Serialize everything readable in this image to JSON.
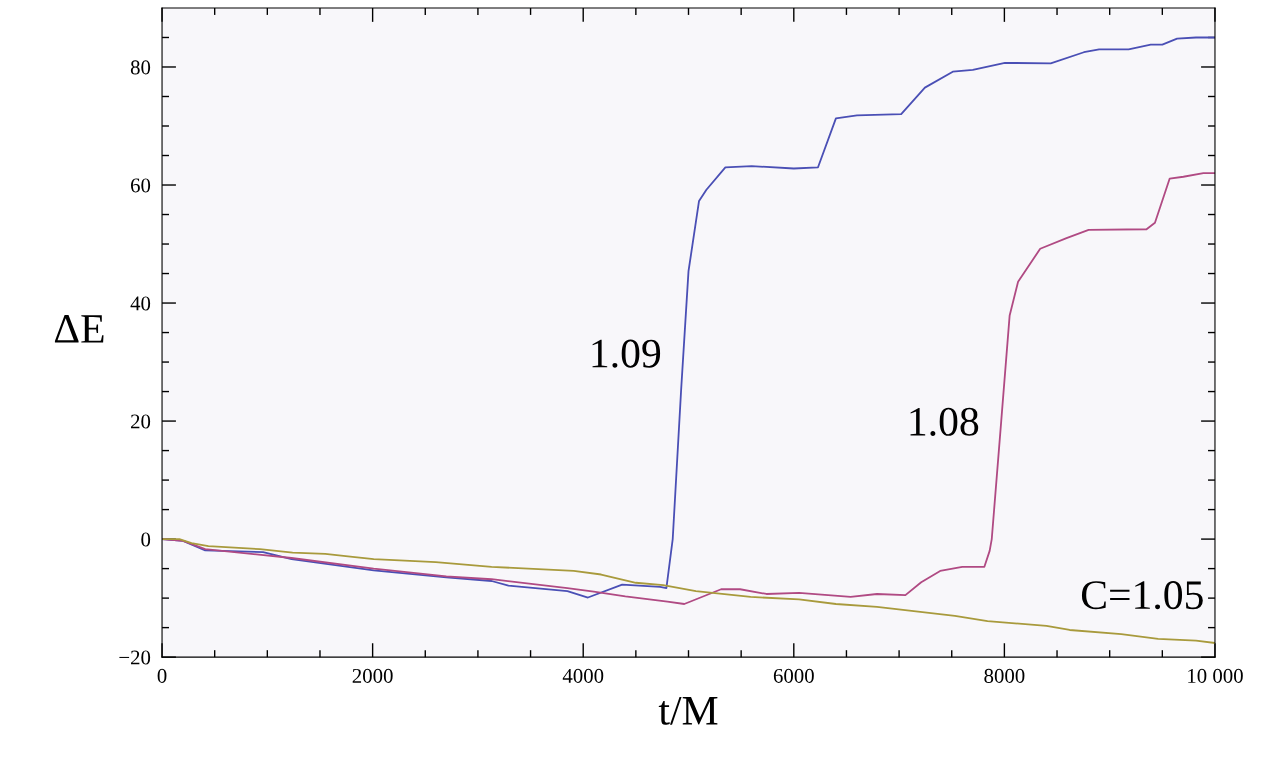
{
  "chart_data": {
    "type": "line",
    "xlabel": "t/M",
    "ylabel": "ΔE",
    "xlim": [
      0,
      10000
    ],
    "ylim": [
      -20,
      90
    ],
    "xticks": [
      0,
      {
        "value": 500,
        "label": null
      },
      {
        "value": 1000,
        "label": null
      },
      {
        "value": 1500,
        "label": null
      },
      2000,
      {
        "value": 2500,
        "label": null
      },
      {
        "value": 3000,
        "label": null
      },
      {
        "value": 3500,
        "label": null
      },
      4000,
      {
        "value": 4500,
        "label": null
      },
      {
        "value": 5000,
        "label": null
      },
      {
        "value": 5500,
        "label": null
      },
      6000,
      {
        "value": 6500,
        "label": null
      },
      {
        "value": 7000,
        "label": null
      },
      {
        "value": 7500,
        "label": null
      },
      8000,
      {
        "value": 8500,
        "label": null
      },
      {
        "value": 9000,
        "label": null
      },
      {
        "value": 9500,
        "label": null
      },
      {
        "value": 10000,
        "label": "10 000"
      }
    ],
    "yticks": [
      {
        "value": -20,
        "label": "−20"
      },
      {
        "value": -15,
        "label": null
      },
      {
        "value": -10,
        "label": null
      },
      {
        "value": -5,
        "label": null
      },
      0,
      {
        "value": 5,
        "label": null
      },
      {
        "value": 10,
        "label": null
      },
      {
        "value": 15,
        "label": null
      },
      20,
      {
        "value": 25,
        "label": null
      },
      {
        "value": 30,
        "label": null
      },
      {
        "value": 35,
        "label": null
      },
      40,
      {
        "value": 45,
        "label": null
      },
      {
        "value": 50,
        "label": null
      },
      {
        "value": 55,
        "label": null
      },
      60,
      {
        "value": 65,
        "label": null
      },
      {
        "value": 70,
        "label": null
      },
      {
        "value": 75,
        "label": null
      },
      80,
      {
        "value": 85,
        "label": null
      }
    ],
    "grid": false,
    "legend": false,
    "marker": "none",
    "line_style": "solid",
    "series": [
      {
        "name": "1.09",
        "color": "#4a4fb5",
        "x": [
          0,
          200,
          410,
          960,
          1230,
          2010,
          2700,
          3130,
          3290,
          3850,
          4045,
          4370,
          4730,
          4790,
          4850,
          4930,
          5000,
          5100,
          5170,
          5350,
          5600,
          6000,
          6230,
          6400,
          6600,
          7020,
          7245,
          7510,
          7700,
          8005,
          8440,
          8755,
          8900,
          9180,
          9390,
          9500,
          9640,
          9820,
          10000
        ],
        "values": [
          0,
          -0.3,
          -1.9,
          -2.2,
          -3.4,
          -5.3,
          -6.5,
          -7.1,
          -7.9,
          -8.8,
          -9.9,
          -7.7,
          -8.1,
          -8.3,
          0,
          25.3,
          45.4,
          57.3,
          59.2,
          63,
          63.2,
          62.8,
          63,
          71.3,
          71.8,
          72,
          76.5,
          79.2,
          79.5,
          80.7,
          80.6,
          82.5,
          83,
          83,
          83.8,
          83.8,
          84.8,
          85,
          85
        ]
      },
      {
        "name": "1.08",
        "color": "#b04a83",
        "x": [
          0,
          200,
          410,
          1230,
          2010,
          2700,
          3130,
          3850,
          4100,
          4400,
          4800,
          4960,
          5310,
          5490,
          5740,
          6050,
          6540,
          6790,
          7060,
          7210,
          7390,
          7600,
          7810,
          7860,
          7880,
          7970,
          8050,
          8130,
          8340,
          8590,
          8800,
          9350,
          9430,
          9570,
          9700,
          9890,
          10000
        ],
        "values": [
          0,
          -0.3,
          -1.7,
          -3.2,
          -5.0,
          -6.3,
          -6.8,
          -8.3,
          -8.9,
          -9.7,
          -10.6,
          -11.0,
          -8.5,
          -8.5,
          -9.3,
          -9.1,
          -9.8,
          -9.3,
          -9.5,
          -7.3,
          -5.4,
          -4.7,
          -4.7,
          -2,
          0,
          20,
          37.9,
          43.6,
          49.2,
          51,
          52.4,
          52.5,
          53.6,
          61.1,
          61.4,
          62,
          62
        ]
      },
      {
        "name": "C=1.05",
        "color": "#a89a3c",
        "x": [
          0,
          165,
          280,
          440,
          930,
          1240,
          1550,
          1810,
          2010,
          2600,
          3130,
          3910,
          4170,
          4500,
          4760,
          5070,
          5590,
          6050,
          6400,
          6790,
          7530,
          7840,
          8400,
          8620,
          9110,
          9460,
          9820,
          10000
        ],
        "values": [
          0,
          0,
          -0.7,
          -1.2,
          -1.7,
          -2.3,
          -2.5,
          -3.0,
          -3.4,
          -3.9,
          -4.7,
          -5.4,
          -6.0,
          -7.4,
          -7.8,
          -8.8,
          -9.8,
          -10.2,
          -11.0,
          -11.5,
          -13,
          -13.9,
          -14.7,
          -15.4,
          -16.1,
          -16.9,
          -17.2,
          -17.6
        ]
      }
    ]
  }
}
